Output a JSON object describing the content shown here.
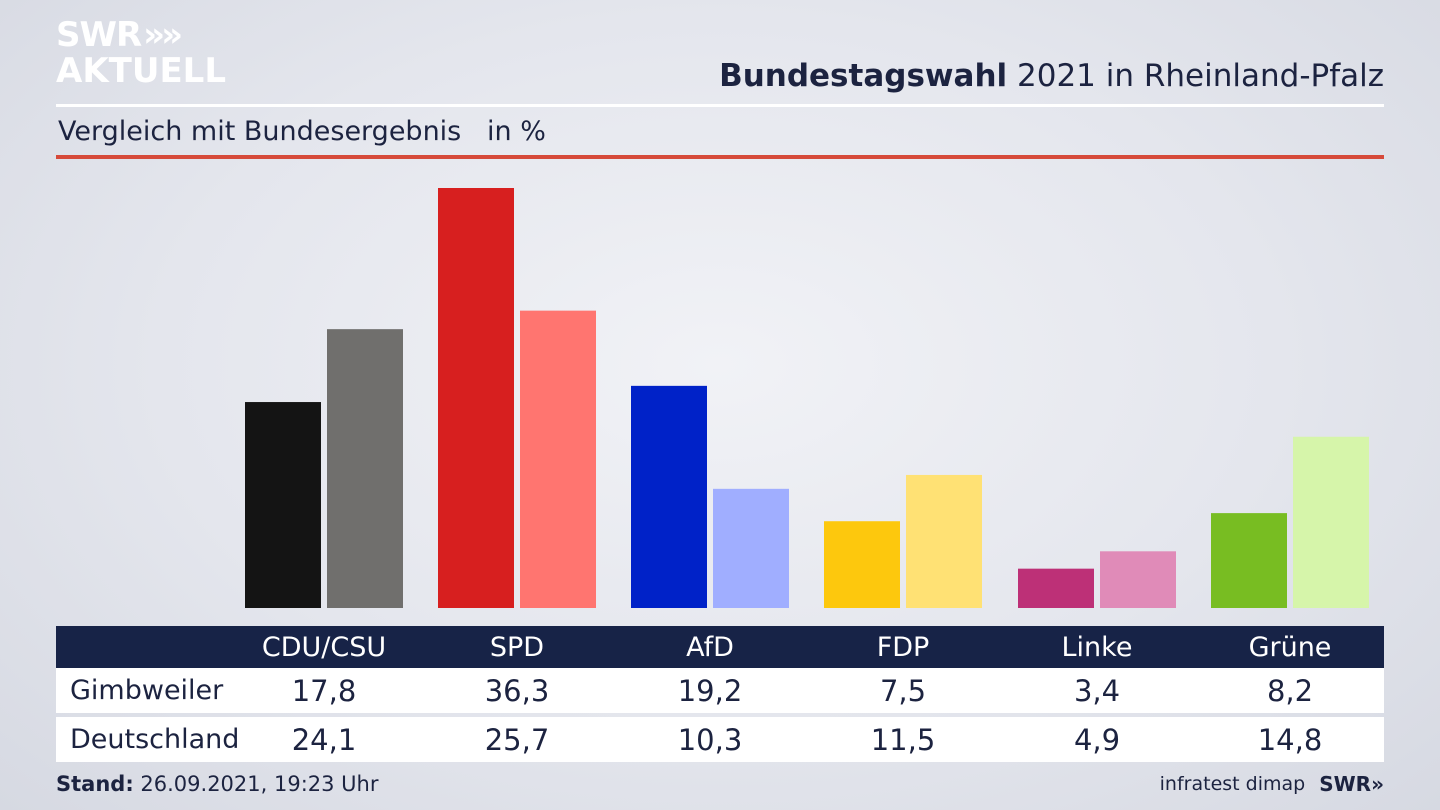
{
  "brand": {
    "logo_line1": "SWR",
    "logo_chevrons": "»",
    "logo_line2": "AKTUELL",
    "footer_logo": "SWR»"
  },
  "header": {
    "title_bold": "Bundestagswahl",
    "title_rest": " 2021 in Rheinland-Pfalz",
    "subtitle": "Vergleich mit Bundesergebnis   in %"
  },
  "footer": {
    "stand_label": "Stand:",
    "stand_value": " 26.09.2021, 19:23 Uhr",
    "source": "infratest dimap"
  },
  "chart_data": {
    "type": "bar",
    "categories": [
      "CDU/CSU",
      "SPD",
      "AfD",
      "FDP",
      "Linke",
      "Grüne"
    ],
    "series": [
      {
        "name": "Gimbweiler",
        "values": [
          17.8,
          36.3,
          19.2,
          7.5,
          3.4,
          8.2
        ],
        "colors": [
          "#141414",
          "#d71f1f",
          "#0022c8",
          "#fdc80d",
          "#bd3077",
          "#78bd22"
        ]
      },
      {
        "name": "Deutschland",
        "values": [
          24.1,
          25.7,
          10.3,
          11.5,
          4.9,
          14.8
        ],
        "colors": [
          "#706f6d",
          "#ff7570",
          "#a0aeff",
          "#ffe174",
          "#e08bb8",
          "#d6f5aa"
        ]
      }
    ],
    "ylim": [
      0,
      36.3
    ],
    "grid": false,
    "legend": "table-below"
  }
}
